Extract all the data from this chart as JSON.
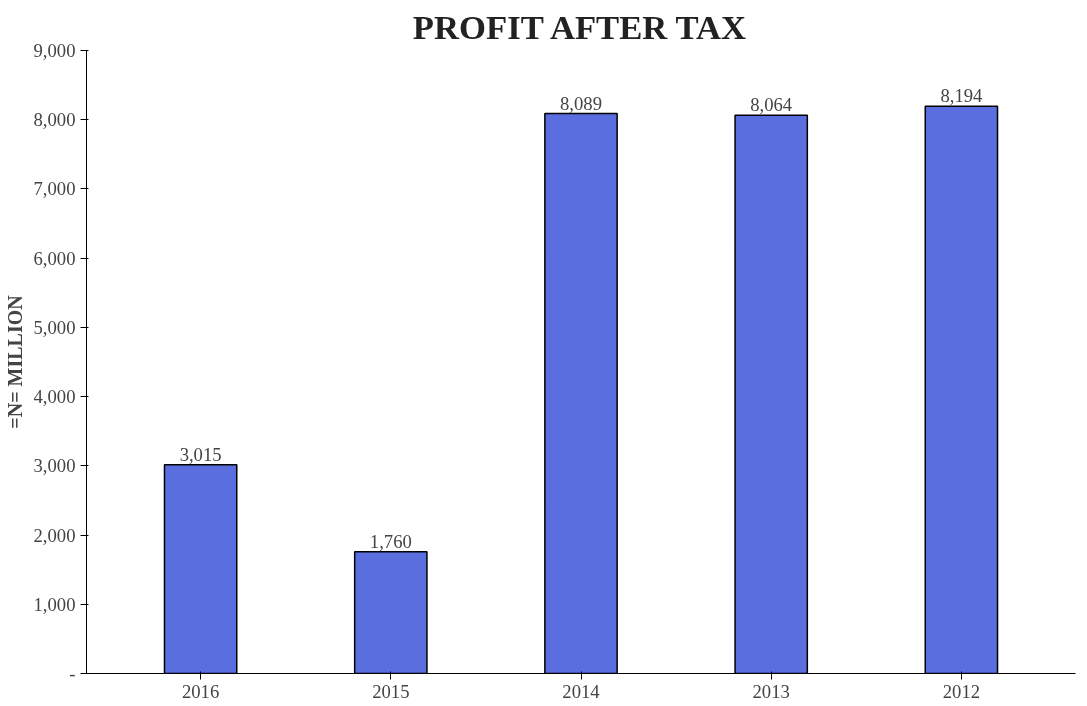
{
  "chart_data": {
    "type": "bar",
    "title": "PROFIT AFTER TAX",
    "ylabel": "=N= MILLION",
    "categories": [
      "2016",
      "2015",
      "2014",
      "2013",
      "2012"
    ],
    "values": [
      3015,
      1760,
      8089,
      8064,
      8194
    ],
    "value_labels": [
      "3,015",
      "1,760",
      "8,089",
      "8,064",
      "8,194"
    ],
    "color": "#5a6ee0",
    "ylim": [
      0,
      9000
    ],
    "yticks": [
      {
        "value": 0,
        "label": "-"
      },
      {
        "value": 1000,
        "label": "1,000"
      },
      {
        "value": 2000,
        "label": "2,000"
      },
      {
        "value": 3000,
        "label": "3,000"
      },
      {
        "value": 4000,
        "label": "4,000"
      },
      {
        "value": 5000,
        "label": "5,000"
      },
      {
        "value": 6000,
        "label": "6,000"
      },
      {
        "value": 7000,
        "label": "7,000"
      },
      {
        "value": 8000,
        "label": "8,000"
      },
      {
        "value": 9000,
        "label": "9,000"
      }
    ],
    "grid": false
  }
}
